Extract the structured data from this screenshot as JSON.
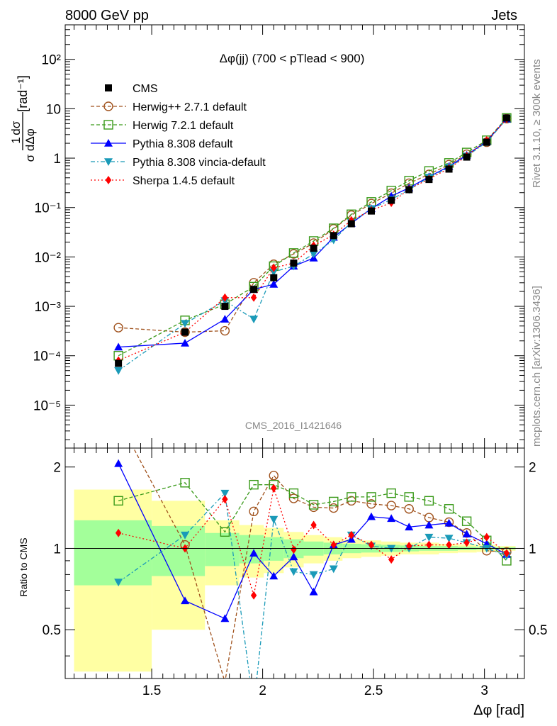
{
  "header": {
    "left": "8000 GeV pp",
    "right": "Jets"
  },
  "side_labels": {
    "rivet": "Rivet 3.1.10, ≥ 300k events",
    "mcplots": "mcplots.cern.ch [arXiv:1306.3436]"
  },
  "analysis_label": "CMS_2016_I1421646",
  "chart_data": {
    "type": "scatter",
    "title": "Δφ(jj) (700 < pTlead <  900)",
    "xlabel": "Δφ [rad]",
    "ylabel": "1/σ dσ/dΔφ [rad⁻¹]",
    "ratio_ylabel": "Ratio to CMS",
    "xlim": [
      1.11,
      3.18
    ],
    "ylim": [
      1.35e-06,
      500
    ],
    "yscale": "log",
    "ratio_ylim": [
      0.33,
      2.35
    ],
    "ratio_yscale": "log",
    "xticks": [
      1.5,
      2,
      2.5,
      3
    ],
    "xtick_labels": [
      "1.5",
      "2",
      "2.5",
      "3"
    ],
    "yticks": [
      1e-05,
      0.0001,
      0.001,
      0.01,
      0.1,
      1,
      10,
      100
    ],
    "ytick_labels": [
      "10⁻⁵",
      "10⁻⁴",
      "10⁻³",
      "10⁻²",
      "10⁻¹",
      "1",
      "10",
      "10²"
    ],
    "ratio_yticks": [
      0.5,
      1,
      2
    ],
    "ratio_ytick_labels": [
      "0.5",
      "1",
      "2"
    ],
    "legend_position": "top-left",
    "x": [
      1.35,
      1.65,
      1.83,
      1.96,
      2.05,
      2.14,
      2.23,
      2.32,
      2.4,
      2.49,
      2.58,
      2.66,
      2.75,
      2.84,
      2.92,
      3.01,
      3.1
    ],
    "data": {
      "name": "CMS",
      "values": [
        7e-05,
        0.0003,
        0.001,
        0.0022,
        0.0038,
        0.0075,
        0.015,
        0.027,
        0.047,
        0.085,
        0.14,
        0.23,
        0.37,
        0.6,
        1.05,
        2.1,
        6.5
      ],
      "stat_band": [
        0.27,
        0.21,
        0.14,
        0.12,
        0.1,
        0.08,
        0.06,
        0.05,
        0.04,
        0.035,
        0.03,
        0.025,
        0.02,
        0.02,
        0.015,
        0.01,
        0.01
      ],
      "total_band": [
        0.65,
        0.5,
        0.27,
        0.22,
        0.19,
        0.15,
        0.12,
        0.1,
        0.08,
        0.07,
        0.06,
        0.05,
        0.05,
        0.04,
        0.035,
        0.03,
        0.02
      ]
    },
    "series": [
      {
        "name": "Herwig++ 2.7.1 default",
        "color": "#a0521d",
        "marker": "open-circle",
        "dash": "5,3",
        "values": [
          0.00037,
          0.0003,
          0.00032,
          0.003,
          0.0071,
          0.0115,
          0.019,
          0.037,
          0.07,
          0.12,
          0.195,
          0.31,
          0.47,
          0.74,
          1.2,
          2.1,
          6.3
        ],
        "ratio": [
          5.3,
          1.03,
          0.32,
          1.37,
          1.86,
          1.53,
          1.42,
          1.41,
          1.5,
          1.46,
          1.44,
          1.4,
          1.3,
          1.25,
          1.14,
          0.98,
          0.97
        ]
      },
      {
        "name": "Herwig 7.2.1 default",
        "color": "#3a9a1a",
        "marker": "open-square",
        "dash": "5,3",
        "values": [
          0.0001,
          0.00052,
          0.0011,
          0.0025,
          0.0065,
          0.012,
          0.021,
          0.038,
          0.073,
          0.13,
          0.22,
          0.35,
          0.55,
          0.8,
          1.3,
          2.3,
          6.5
        ],
        "ratio": [
          1.5,
          1.75,
          1.15,
          1.72,
          1.72,
          1.6,
          1.45,
          1.49,
          1.55,
          1.55,
          1.6,
          1.55,
          1.5,
          1.4,
          1.26,
          1.07,
          0.9
        ]
      },
      {
        "name": "Pythia 8.308 default",
        "color": "#0000ff",
        "marker": "filled-triangle-up",
        "dash": "",
        "values": [
          0.00015,
          0.00018,
          0.00055,
          0.0022,
          0.0028,
          0.0065,
          0.0095,
          0.025,
          0.048,
          0.095,
          0.17,
          0.25,
          0.42,
          0.68,
          1.15,
          2.2,
          6.2
        ],
        "ratio": [
          2.06,
          0.64,
          0.55,
          0.96,
          0.79,
          0.93,
          0.69,
          1.03,
          1.08,
          1.31,
          1.29,
          1.2,
          1.22,
          1.24,
          1.13,
          1.04,
          0.95
        ]
      },
      {
        "name": "Pythia 8.308 vincia-default",
        "color": "#1a9ab8",
        "marker": "filled-triangle-down",
        "dash": "6,3,2,3",
        "values": [
          5e-05,
          0.00045,
          0.0013,
          0.00055,
          0.005,
          0.0065,
          0.0115,
          0.022,
          0.05,
          0.095,
          0.145,
          0.23,
          0.41,
          0.65,
          1.1,
          2.1,
          6.3
        ],
        "ratio": [
          0.75,
          1.12,
          1.6,
          0.25,
          1.28,
          0.82,
          0.8,
          0.84,
          1.12,
          1.02,
          1.0,
          1.0,
          1.1,
          1.09,
          1.05,
          1.0,
          0.94
        ]
      },
      {
        "name": "Sherpa 1.4.5 default",
        "color": "#ff0000",
        "marker": "filled-diamond",
        "dash": "2,3",
        "values": [
          8e-05,
          0.0003,
          0.0015,
          0.0015,
          0.006,
          0.0075,
          0.017,
          0.028,
          0.055,
          0.088,
          0.125,
          0.235,
          0.38,
          0.62,
          1.1,
          2.3,
          6.2
        ],
        "ratio": [
          1.14,
          1.0,
          1.52,
          0.67,
          1.67,
          0.99,
          1.22,
          1.03,
          1.12,
          1.03,
          0.91,
          1.02,
          1.03,
          1.03,
          1.05,
          1.1,
          0.96
        ]
      }
    ]
  }
}
